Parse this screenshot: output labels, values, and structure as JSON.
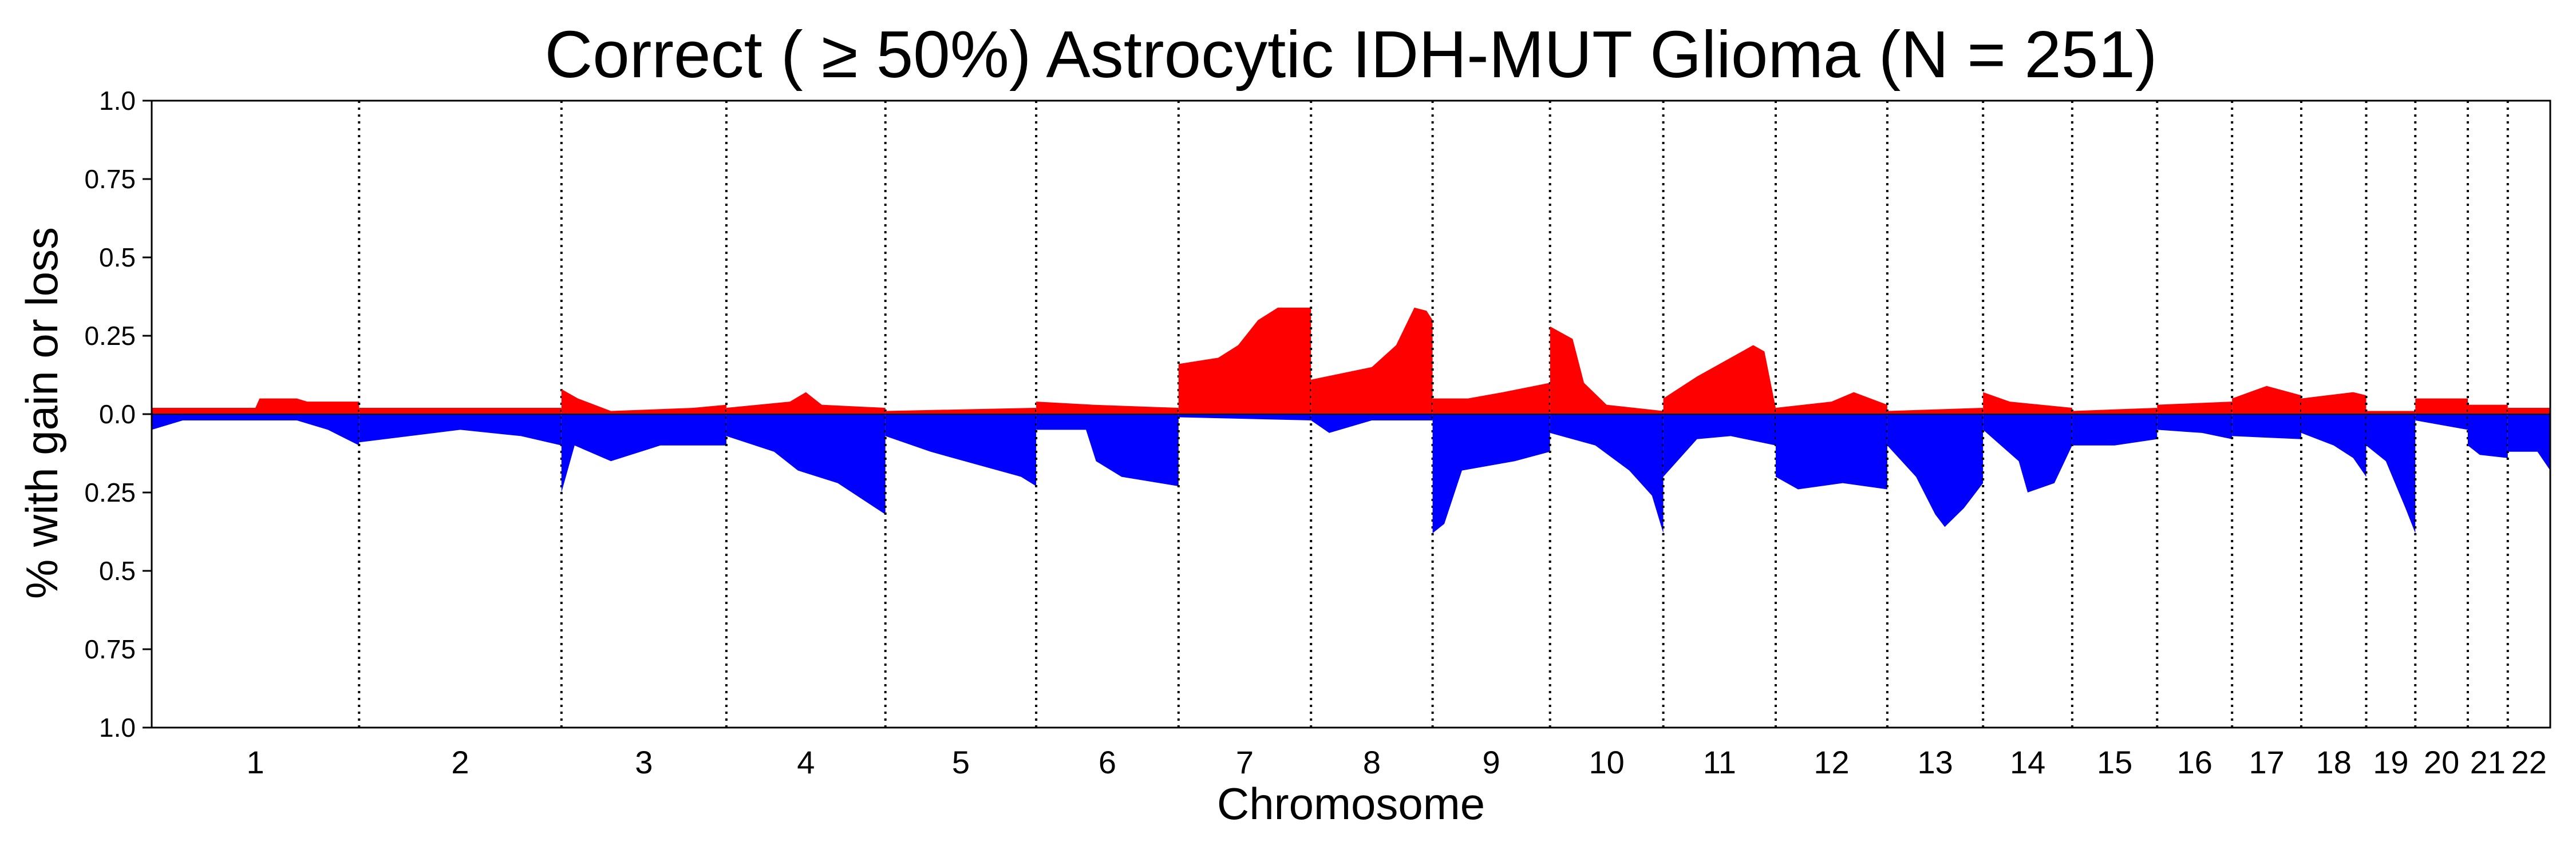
{
  "chart_data": {
    "type": "area",
    "title": "Correct ( ≥ 50%) Astrocytic IDH-MUT Glioma (N = 251)",
    "xlabel": "Chromosome",
    "ylabel": "% with gain or loss",
    "ylim": [
      -1.0,
      1.0
    ],
    "yticks": [
      {
        "value": 1.0,
        "label": "1.0"
      },
      {
        "value": 0.75,
        "label": "0.75"
      },
      {
        "value": 0.5,
        "label": "0.5"
      },
      {
        "value": 0.25,
        "label": "0.25"
      },
      {
        "value": 0.0,
        "label": "0.0"
      },
      {
        "value": -0.25,
        "label": "0.25"
      },
      {
        "value": -0.5,
        "label": "0.5"
      },
      {
        "value": -0.75,
        "label": "0.75"
      },
      {
        "value": -1.0,
        "label": "1.0"
      }
    ],
    "chromosomes": [
      {
        "label": "1",
        "length": 249,
        "gain": [
          [
            0,
            0.02
          ],
          [
            0.5,
            0.02
          ],
          [
            0.52,
            0.05
          ],
          [
            0.7,
            0.05
          ],
          [
            0.75,
            0.04
          ],
          [
            1,
            0.04
          ]
        ],
        "loss": [
          [
            0,
            0.05
          ],
          [
            0.15,
            0.02
          ],
          [
            0.5,
            0.02
          ],
          [
            0.7,
            0.02
          ],
          [
            0.85,
            0.05
          ],
          [
            1,
            0.1
          ]
        ]
      },
      {
        "label": "2",
        "length": 243,
        "gain": [
          [
            0,
            0.02
          ],
          [
            1,
            0.02
          ]
        ],
        "loss": [
          [
            0,
            0.09
          ],
          [
            0.5,
            0.05
          ],
          [
            0.8,
            0.07
          ],
          [
            1,
            0.1
          ]
        ]
      },
      {
        "label": "3",
        "length": 198,
        "gain": [
          [
            0,
            0.08
          ],
          [
            0.1,
            0.05
          ],
          [
            0.3,
            0.01
          ],
          [
            0.8,
            0.02
          ],
          [
            1,
            0.03
          ]
        ],
        "loss": [
          [
            0,
            0.25
          ],
          [
            0.08,
            0.1
          ],
          [
            0.3,
            0.15
          ],
          [
            0.6,
            0.1
          ],
          [
            1,
            0.1
          ]
        ]
      },
      {
        "label": "4",
        "length": 191,
        "gain": [
          [
            0,
            0.02
          ],
          [
            0.4,
            0.04
          ],
          [
            0.5,
            0.07
          ],
          [
            0.6,
            0.03
          ],
          [
            1,
            0.02
          ]
        ],
        "loss": [
          [
            0,
            0.07
          ],
          [
            0.3,
            0.12
          ],
          [
            0.45,
            0.18
          ],
          [
            0.7,
            0.22
          ],
          [
            1,
            0.32
          ]
        ]
      },
      {
        "label": "5",
        "length": 181,
        "gain": [
          [
            0,
            0.01
          ],
          [
            1,
            0.02
          ]
        ],
        "loss": [
          [
            0,
            0.07
          ],
          [
            0.3,
            0.12
          ],
          [
            0.6,
            0.16
          ],
          [
            0.9,
            0.2
          ],
          [
            1,
            0.23
          ]
        ]
      },
      {
        "label": "6",
        "length": 171,
        "gain": [
          [
            0,
            0.04
          ],
          [
            0.4,
            0.03
          ],
          [
            1,
            0.02
          ]
        ],
        "loss": [
          [
            0,
            0.05
          ],
          [
            0.35,
            0.05
          ],
          [
            0.42,
            0.15
          ],
          [
            0.6,
            0.2
          ],
          [
            1,
            0.23
          ]
        ]
      },
      {
        "label": "7",
        "length": 159,
        "gain": [
          [
            0,
            0.16
          ],
          [
            0.3,
            0.18
          ],
          [
            0.45,
            0.22
          ],
          [
            0.6,
            0.3
          ],
          [
            0.75,
            0.34
          ],
          [
            1,
            0.34
          ]
        ],
        "loss": [
          [
            0,
            0.01
          ],
          [
            1,
            0.02
          ]
        ]
      },
      {
        "label": "8",
        "length": 146,
        "gain": [
          [
            0,
            0.11
          ],
          [
            0.5,
            0.15
          ],
          [
            0.7,
            0.22
          ],
          [
            0.85,
            0.34
          ],
          [
            0.95,
            0.33
          ],
          [
            1,
            0.3
          ]
        ],
        "loss": [
          [
            0,
            0.02
          ],
          [
            0.15,
            0.06
          ],
          [
            0.5,
            0.02
          ],
          [
            1,
            0.02
          ]
        ]
      },
      {
        "label": "9",
        "length": 141,
        "gain": [
          [
            0,
            0.05
          ],
          [
            0.3,
            0.05
          ],
          [
            0.6,
            0.07
          ],
          [
            1,
            0.1
          ]
        ],
        "loss": [
          [
            0,
            0.38
          ],
          [
            0.1,
            0.35
          ],
          [
            0.25,
            0.18
          ],
          [
            0.7,
            0.15
          ],
          [
            1,
            0.12
          ]
        ]
      },
      {
        "label": "10",
        "length": 136,
        "gain": [
          [
            0,
            0.28
          ],
          [
            0.2,
            0.24
          ],
          [
            0.3,
            0.1
          ],
          [
            0.5,
            0.03
          ],
          [
            1,
            0.01
          ]
        ],
        "loss": [
          [
            0,
            0.06
          ],
          [
            0.4,
            0.1
          ],
          [
            0.7,
            0.18
          ],
          [
            0.9,
            0.26
          ],
          [
            1,
            0.38
          ]
        ]
      },
      {
        "label": "11",
        "length": 135,
        "gain": [
          [
            0,
            0.05
          ],
          [
            0.3,
            0.12
          ],
          [
            0.6,
            0.18
          ],
          [
            0.8,
            0.22
          ],
          [
            0.9,
            0.2
          ],
          [
            1,
            0.02
          ]
        ],
        "loss": [
          [
            0,
            0.2
          ],
          [
            0.3,
            0.08
          ],
          [
            0.6,
            0.07
          ],
          [
            1,
            0.1
          ]
        ]
      },
      {
        "label": "12",
        "length": 134,
        "gain": [
          [
            0,
            0.02
          ],
          [
            0.5,
            0.04
          ],
          [
            0.7,
            0.07
          ],
          [
            1,
            0.03
          ]
        ],
        "loss": [
          [
            0,
            0.2
          ],
          [
            0.2,
            0.24
          ],
          [
            0.6,
            0.22
          ],
          [
            1,
            0.24
          ]
        ]
      },
      {
        "label": "13",
        "length": 115,
        "gain": [
          [
            0,
            0.01
          ],
          [
            1,
            0.02
          ]
        ],
        "loss": [
          [
            0,
            0.1
          ],
          [
            0.3,
            0.2
          ],
          [
            0.5,
            0.32
          ],
          [
            0.6,
            0.36
          ],
          [
            0.8,
            0.3
          ],
          [
            1,
            0.22
          ]
        ]
      },
      {
        "label": "14",
        "length": 107,
        "gain": [
          [
            0,
            0.07
          ],
          [
            0.3,
            0.04
          ],
          [
            1,
            0.02
          ]
        ],
        "loss": [
          [
            0,
            0.05
          ],
          [
            0.4,
            0.15
          ],
          [
            0.5,
            0.25
          ],
          [
            0.8,
            0.22
          ],
          [
            1,
            0.1
          ]
        ]
      },
      {
        "label": "15",
        "length": 102,
        "gain": [
          [
            0,
            0.01
          ],
          [
            1,
            0.02
          ]
        ],
        "loss": [
          [
            0,
            0.1
          ],
          [
            0.5,
            0.1
          ],
          [
            1,
            0.08
          ]
        ]
      },
      {
        "label": "16",
        "length": 90,
        "gain": [
          [
            0,
            0.03
          ],
          [
            1,
            0.04
          ]
        ],
        "loss": [
          [
            0,
            0.05
          ],
          [
            0.6,
            0.06
          ],
          [
            1,
            0.08
          ]
        ]
      },
      {
        "label": "17",
        "length": 83,
        "gain": [
          [
            0,
            0.05
          ],
          [
            0.5,
            0.09
          ],
          [
            1,
            0.06
          ]
        ],
        "loss": [
          [
            0,
            0.07
          ],
          [
            1,
            0.08
          ]
        ]
      },
      {
        "label": "18",
        "length": 78,
        "gain": [
          [
            0,
            0.05
          ],
          [
            0.8,
            0.07
          ],
          [
            1,
            0.06
          ]
        ],
        "loss": [
          [
            0,
            0.06
          ],
          [
            0.5,
            0.1
          ],
          [
            0.8,
            0.14
          ],
          [
            1,
            0.2
          ]
        ]
      },
      {
        "label": "19",
        "length": 59,
        "gain": [
          [
            0,
            0.01
          ],
          [
            1,
            0.01
          ]
        ],
        "loss": [
          [
            0,
            0.1
          ],
          [
            0.4,
            0.15
          ],
          [
            0.8,
            0.3
          ],
          [
            1,
            0.38
          ]
        ]
      },
      {
        "label": "20",
        "length": 63,
        "gain": [
          [
            0,
            0.05
          ],
          [
            1,
            0.05
          ]
        ],
        "loss": [
          [
            0,
            0.02
          ],
          [
            1,
            0.05
          ]
        ]
      },
      {
        "label": "21",
        "length": 48,
        "gain": [
          [
            0,
            0.03
          ],
          [
            1,
            0.03
          ]
        ],
        "loss": [
          [
            0,
            0.1
          ],
          [
            0.3,
            0.13
          ],
          [
            1,
            0.14
          ]
        ]
      },
      {
        "label": "22",
        "length": 51,
        "gain": [
          [
            0,
            0.02
          ],
          [
            1,
            0.02
          ]
        ],
        "loss": [
          [
            0,
            0.12
          ],
          [
            0.7,
            0.12
          ],
          [
            1,
            0.18
          ]
        ]
      }
    ],
    "series": [
      {
        "name": "gain",
        "color": "#ff0000"
      },
      {
        "name": "loss",
        "color": "#0000ff"
      }
    ],
    "grid": false
  }
}
